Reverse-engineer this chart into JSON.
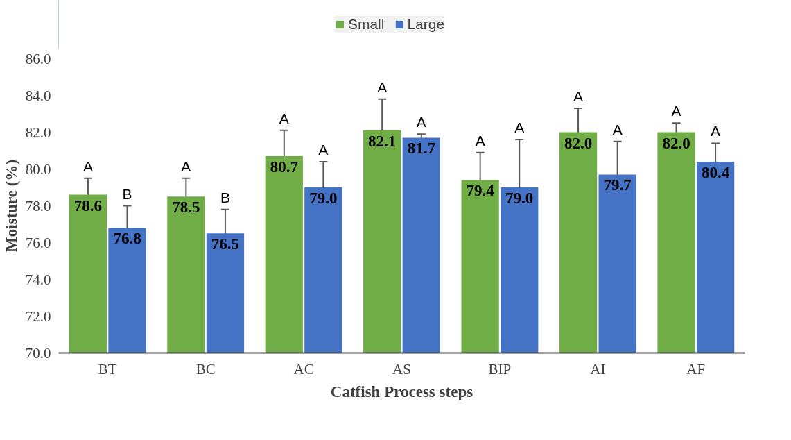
{
  "chart_data": {
    "type": "bar",
    "xlabel": "Catfish Process steps",
    "ylabel": "Moisture (%)",
    "categories": [
      "BT",
      "BC",
      "AC",
      "AS",
      "BIP",
      "AI",
      "AF"
    ],
    "series": [
      {
        "name": "Small",
        "color": "#70ad47",
        "values": [
          78.6,
          78.5,
          80.7,
          82.1,
          79.4,
          82.0,
          82.0
        ],
        "errors": [
          0.9,
          1.0,
          1.4,
          1.7,
          1.5,
          1.3,
          0.5
        ],
        "value_labels": [
          "78.6",
          "78.5",
          "80.7",
          "82.1",
          "79.4",
          "82.0",
          "82.0"
        ]
      },
      {
        "name": "Large",
        "color": "#4472c4",
        "values": [
          76.8,
          76.5,
          79.0,
          81.7,
          79.0,
          79.7,
          80.4
        ],
        "errors": [
          1.2,
          1.3,
          1.4,
          0.2,
          2.6,
          1.8,
          1.0
        ],
        "value_labels": [
          "76.8",
          "76.5",
          "79.0",
          "81.7",
          "79.0",
          "79.7",
          "80.4"
        ]
      }
    ],
    "ylim": [
      70,
      86
    ],
    "yticks": [
      {
        "value": 70,
        "label": "70.0"
      },
      {
        "value": 72,
        "label": "72.0"
      },
      {
        "value": 74,
        "label": "74.0"
      },
      {
        "value": 76,
        "label": "76.0"
      },
      {
        "value": 78,
        "label": "78.0"
      },
      {
        "value": 80,
        "label": "80.0"
      },
      {
        "value": 82,
        "label": "82.0"
      },
      {
        "value": 84,
        "label": "84.0"
      },
      {
        "value": 86,
        "label": "86.0"
      }
    ],
    "legend": "top",
    "grid": false,
    "annotations": [
      "A",
      "B",
      "A",
      "B",
      "A",
      "A",
      "A",
      "A",
      "A",
      "A",
      "A",
      "A",
      "A",
      "A"
    ]
  }
}
